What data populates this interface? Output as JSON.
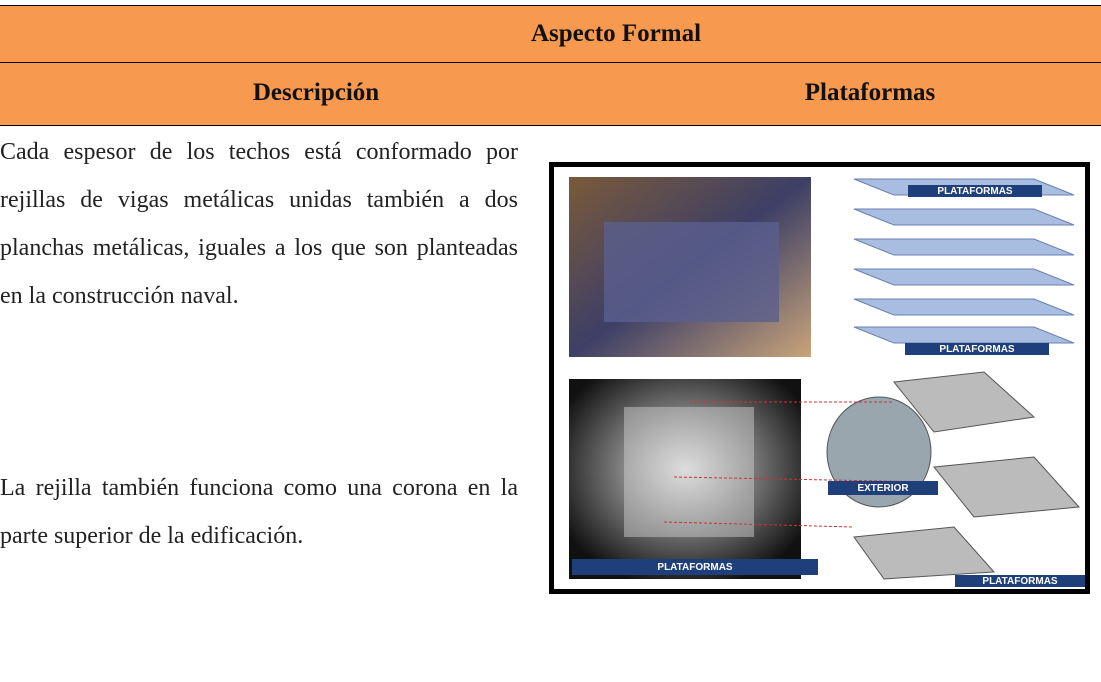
{
  "header": {
    "title": "Aspecto Formal",
    "columns": [
      "Descripción",
      "Plataformas"
    ]
  },
  "description": {
    "paragraphs": [
      "Cada espesor de los techos está conformado por rejillas de vigas metálicas unidas también a dos planchas metálicas, iguales a los que son planteadas en la construcción naval.",
      "La rejilla también funciona como una corona en la parte superior de la edificación."
    ]
  },
  "figure": {
    "labels": [
      "PLATAFORMAS",
      "PLATAFORMAS",
      "EXTERIOR",
      "PLATAFORMAS",
      "PLATAFORMAS"
    ]
  }
}
